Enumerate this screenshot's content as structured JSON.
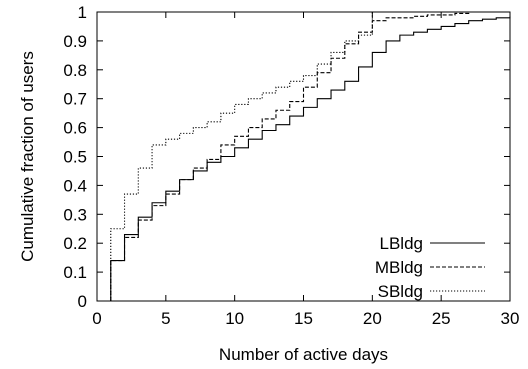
{
  "chart_data": {
    "type": "line",
    "step": true,
    "title": "",
    "xlabel": "Number of active days",
    "ylabel": "Cumulative fraction of users",
    "xlim": [
      0,
      30
    ],
    "ylim": [
      0,
      1
    ],
    "xticks": [
      0,
      5,
      10,
      15,
      20,
      25,
      30
    ],
    "yticks": [
      0,
      0.1,
      0.2,
      0.3,
      0.4,
      0.5,
      0.6,
      0.7,
      0.8,
      0.9,
      1
    ],
    "xtick_labels": [
      "0",
      "5",
      "10",
      "15",
      "20",
      "25",
      "30"
    ],
    "ytick_labels": [
      "0",
      "0.1",
      "0.2",
      "0.3",
      "0.4",
      "0.5",
      "0.6",
      "0.7",
      "0.8",
      "0.9",
      "1"
    ],
    "grid": false,
    "legend_position": "bottom-right",
    "series": [
      {
        "name": "LBldg",
        "line_style": "solid",
        "x": [
          1,
          2,
          3,
          4,
          5,
          6,
          7,
          8,
          9,
          10,
          11,
          12,
          13,
          14,
          15,
          16,
          17,
          18,
          19,
          20,
          21,
          22,
          23,
          24,
          25,
          26,
          27,
          28,
          29,
          30
        ],
        "y": [
          0.14,
          0.23,
          0.29,
          0.34,
          0.38,
          0.42,
          0.45,
          0.48,
          0.5,
          0.53,
          0.56,
          0.59,
          0.61,
          0.64,
          0.67,
          0.7,
          0.73,
          0.76,
          0.81,
          0.86,
          0.9,
          0.92,
          0.93,
          0.94,
          0.95,
          0.96,
          0.97,
          0.975,
          0.98,
          0.985
        ]
      },
      {
        "name": "MBldg",
        "line_style": "dashed",
        "x": [
          1,
          2,
          3,
          4,
          5,
          6,
          7,
          8,
          9,
          10,
          11,
          12,
          13,
          14,
          15,
          16,
          17,
          18,
          19,
          20,
          21,
          22,
          23,
          24,
          25,
          26,
          27,
          28,
          29,
          30
        ],
        "y": [
          0.14,
          0.22,
          0.28,
          0.33,
          0.37,
          0.42,
          0.46,
          0.49,
          0.54,
          0.57,
          0.6,
          0.63,
          0.66,
          0.69,
          0.74,
          0.79,
          0.84,
          0.89,
          0.93,
          0.97,
          0.98,
          0.98,
          0.985,
          0.99,
          0.99,
          0.995,
          1.0,
          1.0,
          1.0,
          1.0
        ]
      },
      {
        "name": "SBldg",
        "line_style": "dotted",
        "x": [
          1,
          2,
          3,
          4,
          5,
          6,
          7,
          8,
          9,
          10,
          11,
          12,
          13,
          14,
          15,
          16,
          17,
          18,
          19,
          20,
          21,
          22,
          23,
          24,
          25,
          26,
          27,
          28,
          29,
          30
        ],
        "y": [
          0.25,
          0.37,
          0.46,
          0.54,
          0.56,
          0.58,
          0.6,
          0.62,
          0.65,
          0.68,
          0.7,
          0.72,
          0.74,
          0.76,
          0.78,
          0.82,
          0.86,
          0.9,
          0.92,
          1.0,
          1.0,
          1.0,
          1.0,
          1.0,
          1.0,
          1.0,
          1.0,
          1.0,
          1.0,
          1.0
        ]
      }
    ]
  }
}
